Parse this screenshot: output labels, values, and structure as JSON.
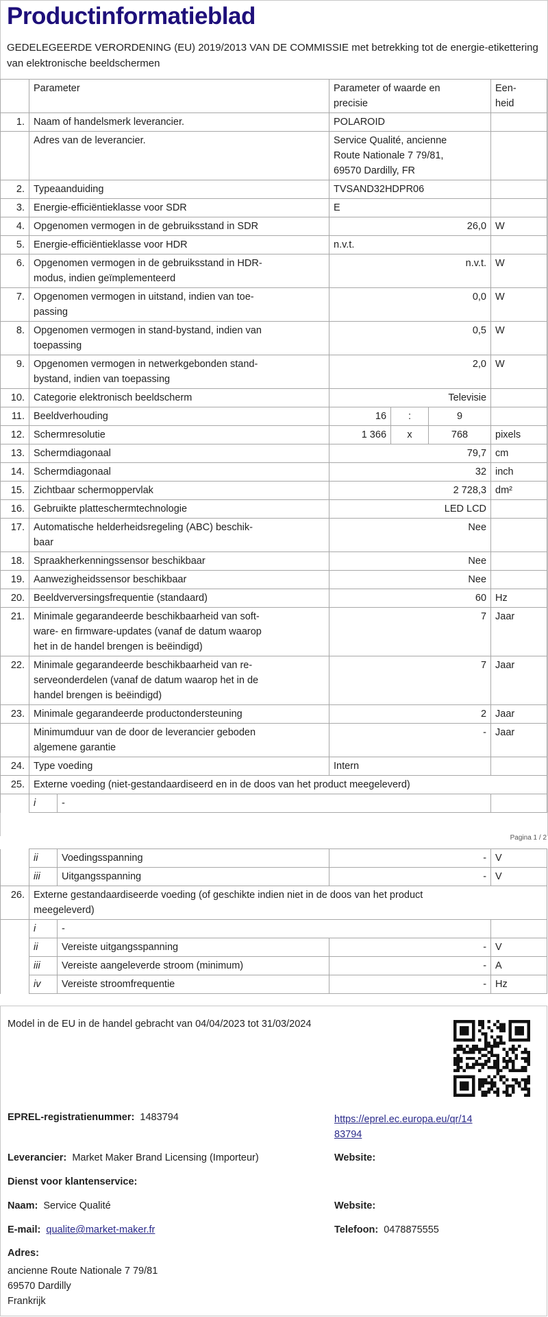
{
  "title": "Productinformatieblad",
  "subtitle": "GEDELEGEERDE VERORDENING (EU) 2019/2013 VAN DE COMMISSIE met betrekking tot de energie-etikettering van elektronische beeldschermen",
  "table_header": {
    "param": "Parameter",
    "value": "Parameter of waarde en\nprecisie",
    "unit": "Een-\nheid"
  },
  "rows": [
    {
      "type": "std",
      "num": "1.",
      "param": "Naam of handelsmerk leverancier.",
      "value": "POLAROID",
      "unit": "",
      "align": "left"
    },
    {
      "type": "std",
      "num": "",
      "param": "Adres van de leverancier.",
      "value": "Service Qualité, ancienne\nRoute Nationale 7 79/81,\n69570 Dardilly, FR",
      "unit": "",
      "align": "left"
    },
    {
      "type": "std",
      "num": "2.",
      "param": "Typeaanduiding",
      "value": "TVSAND32HDPR06",
      "unit": "",
      "align": "left"
    },
    {
      "type": "std",
      "num": "3.",
      "param": "Energie-efficiëntieklasse voor SDR",
      "value": "E",
      "unit": "",
      "align": "left"
    },
    {
      "type": "std",
      "num": "4.",
      "param": "Opgenomen vermogen in de gebruiksstand in SDR",
      "value": "26,0",
      "unit": "W",
      "align": "right"
    },
    {
      "type": "std",
      "num": "5.",
      "param": "Energie-efficiëntieklasse voor HDR",
      "value": "n.v.t.",
      "unit": "",
      "align": "left"
    },
    {
      "type": "std",
      "num": "6.",
      "param": "Opgenomen vermogen in de gebruiksstand in HDR-\nmodus, indien geïmplementeerd",
      "value": "n.v.t.",
      "unit": "W",
      "align": "right"
    },
    {
      "type": "std",
      "num": "7.",
      "param": "Opgenomen vermogen in uitstand, indien van toe-\npassing",
      "value": "0,0",
      "unit": "W",
      "align": "right"
    },
    {
      "type": "std",
      "num": "8.",
      "param": "Opgenomen vermogen in stand-bystand, indien van\ntoepassing",
      "value": "0,5",
      "unit": "W",
      "align": "right"
    },
    {
      "type": "std",
      "num": "9.",
      "param": "Opgenomen vermogen in netwerkgebonden stand-\nbystand, indien van toepassing",
      "value": "2,0",
      "unit": "W",
      "align": "right"
    },
    {
      "type": "std",
      "num": "10.",
      "param": "Categorie elektronisch beeldscherm",
      "value": "Televisie",
      "unit": "",
      "align": "right"
    },
    {
      "type": "ratio",
      "num": "11.",
      "param": "Beeldverhouding",
      "parts": [
        "16",
        ":",
        "9"
      ],
      "unit": ""
    },
    {
      "type": "ratio",
      "num": "12.",
      "param": "Schermresolutie",
      "parts": [
        "1 366",
        "x",
        "768"
      ],
      "unit": "pixels"
    },
    {
      "type": "std",
      "num": "13.",
      "param": "Schermdiagonaal",
      "value": "79,7",
      "unit": "cm",
      "align": "right"
    },
    {
      "type": "std",
      "num": "14.",
      "param": "Schermdiagonaal",
      "value": "32",
      "unit": "inch",
      "align": "right"
    },
    {
      "type": "std",
      "num": "15.",
      "param": "Zichtbaar schermoppervlak",
      "value": "2 728,3",
      "unit": "dm²",
      "align": "right"
    },
    {
      "type": "std",
      "num": "16.",
      "param": "Gebruikte platteschermtechnologie",
      "value": "LED LCD",
      "unit": "",
      "align": "right"
    },
    {
      "type": "std",
      "num": "17.",
      "param": "Automatische helderheidsregeling (ABC) beschik-\nbaar",
      "value": "Nee",
      "unit": "",
      "align": "right"
    },
    {
      "type": "std",
      "num": "18.",
      "param": "Spraakherkenningssensor beschikbaar",
      "value": "Nee",
      "unit": "",
      "align": "right"
    },
    {
      "type": "std",
      "num": "19.",
      "param": "Aanwezigheidssensor beschikbaar",
      "value": "Nee",
      "unit": "",
      "align": "right"
    },
    {
      "type": "std",
      "num": "20.",
      "param": "Beeldverversingsfrequentie (standaard)",
      "value": "60",
      "unit": "Hz",
      "align": "right"
    },
    {
      "type": "std",
      "num": "21.",
      "param": "Minimale gegarandeerde beschikbaarheid van soft-\nware- en firmware-updates (vanaf de datum waarop\nhet in de handel brengen is beëindigd)",
      "value": "7",
      "unit": "Jaar",
      "align": "right"
    },
    {
      "type": "std",
      "num": "22.",
      "param": "Minimale gegarandeerde beschikbaarheid van re-\nserveonderdelen (vanaf de datum waarop het in de\nhandel brengen is beëindigd)",
      "value": "7",
      "unit": "Jaar",
      "align": "right"
    },
    {
      "type": "std",
      "num": "23.",
      "param": "Minimale gegarandeerde productondersteuning",
      "value": "2",
      "unit": "Jaar",
      "align": "right"
    },
    {
      "type": "std",
      "num": "",
      "param": "Minimumduur van de door de leverancier geboden\nalgemene garantie",
      "value": "-",
      "unit": "Jaar",
      "align": "right"
    },
    {
      "type": "std",
      "num": "24.",
      "param": "Type voeding",
      "value": "Intern",
      "unit": "",
      "align": "left"
    },
    {
      "type": "full",
      "num": "25.",
      "text": "Externe voeding (niet-gestandaardiseerd en in de doos van het product meegeleverd)"
    },
    {
      "type": "sub",
      "roman": "i",
      "text": "-",
      "unit": ""
    }
  ],
  "page_label": "Pagina 1 / 2",
  "rows2": [
    {
      "type": "subv",
      "roman": "ii",
      "label": "Voedingsspanning",
      "value": "-",
      "unit": "V"
    },
    {
      "type": "subv",
      "roman": "iii",
      "label": "Uitgangsspanning",
      "value": "-",
      "unit": "V"
    },
    {
      "type": "full",
      "num": "26.",
      "text": "Externe gestandaardiseerde voeding (of geschikte indien niet in de doos van het product\nmeegeleverd)"
    },
    {
      "type": "sub",
      "roman": "i",
      "text": "-",
      "unit": ""
    },
    {
      "type": "subv",
      "roman": "ii",
      "label": "Vereiste uitgangsspanning",
      "value": "-",
      "unit": "V"
    },
    {
      "type": "subv",
      "roman": "iii",
      "label": "Vereiste aangeleverde stroom (minimum)",
      "value": "-",
      "unit": "A"
    },
    {
      "type": "subv",
      "roman": "iv",
      "label": "Vereiste stroomfrequentie",
      "value": "-",
      "unit": "Hz"
    }
  ],
  "footer": {
    "market_period": "Model in de EU in de handel gebracht van 04/04/2023 tot 31/03/2024",
    "eprel_label": "EPREL-registratienummer:",
    "eprel_value": "1483794",
    "eprel_link": "https://eprel.ec.europa.eu/qr/14\n83794",
    "supplier_label": "Leverancier:",
    "supplier_value": "Market Maker Brand Licensing (Importeur)",
    "website_label_1": "Website:",
    "service_heading": "Dienst voor klantenservice:",
    "name_label": "Naam:",
    "name_value": "Service Qualité",
    "website_label_2": "Website:",
    "email_label": "E-mail:",
    "email_value": "qualite@market-maker.fr",
    "phone_label": "Telefoon:",
    "phone_value": "0478875555",
    "address_label": "Adres:",
    "address_lines": [
      "ancienne Route Nationale 7 79/81",
      "69570 Dardilly",
      "Frankrijk"
    ]
  },
  "colors": {
    "title": "#1e0f7a",
    "border": "#a8a8a8",
    "link": "#2a2a8a"
  }
}
